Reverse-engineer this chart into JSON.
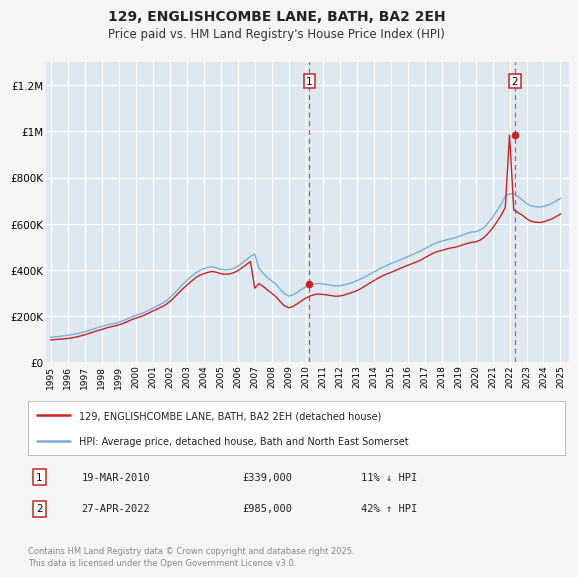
{
  "title": "129, ENGLISHCOMBE LANE, BATH, BA2 2EH",
  "subtitle": "Price paid vs. HM Land Registry's House Price Index (HPI)",
  "title_fontsize": 10,
  "subtitle_fontsize": 8.5,
  "xlim": [
    1994.7,
    2025.5
  ],
  "ylim": [
    0,
    1300000
  ],
  "yticks": [
    0,
    200000,
    400000,
    600000,
    800000,
    1000000,
    1200000
  ],
  "ytick_labels": [
    "£0",
    "£200K",
    "£400K",
    "£600K",
    "£800K",
    "£1M",
    "£1.2M"
  ],
  "xtick_years": [
    1995,
    1996,
    1997,
    1998,
    1999,
    2000,
    2001,
    2002,
    2003,
    2004,
    2005,
    2006,
    2007,
    2008,
    2009,
    2010,
    2011,
    2012,
    2013,
    2014,
    2015,
    2016,
    2017,
    2018,
    2019,
    2020,
    2021,
    2022,
    2023,
    2024,
    2025
  ],
  "background_color": "#f5f5f5",
  "plot_bg_color": "#dde8f0",
  "grid_color": "#ffffff",
  "hpi_color": "#7aaed6",
  "price_color": "#cc2222",
  "marker1_date_x": 2010.21,
  "marker1_price": 339000,
  "marker1_label": "1",
  "marker1_date_str": "19-MAR-2010",
  "marker1_price_str": "£339,000",
  "marker1_hpi_str": "11% ↓ HPI",
  "marker2_date_x": 2022.32,
  "marker2_price": 985000,
  "marker2_label": "2",
  "marker2_date_str": "27-APR-2022",
  "marker2_price_str": "£985,000",
  "marker2_hpi_str": "42% ↑ HPI",
  "legend_line1": "129, ENGLISHCOMBE LANE, BATH, BA2 2EH (detached house)",
  "legend_line2": "HPI: Average price, detached house, Bath and North East Somerset",
  "footer": "Contains HM Land Registry data © Crown copyright and database right 2025.\nThis data is licensed under the Open Government Licence v3.0.",
  "hpi_data_x": [
    1995.0,
    1995.25,
    1995.5,
    1995.75,
    1996.0,
    1996.25,
    1996.5,
    1996.75,
    1997.0,
    1997.25,
    1997.5,
    1997.75,
    1998.0,
    1998.25,
    1998.5,
    1998.75,
    1999.0,
    1999.25,
    1999.5,
    1999.75,
    2000.0,
    2000.25,
    2000.5,
    2000.75,
    2001.0,
    2001.25,
    2001.5,
    2001.75,
    2002.0,
    2002.25,
    2002.5,
    2002.75,
    2003.0,
    2003.25,
    2003.5,
    2003.75,
    2004.0,
    2004.25,
    2004.5,
    2004.75,
    2005.0,
    2005.25,
    2005.5,
    2005.75,
    2006.0,
    2006.25,
    2006.5,
    2006.75,
    2007.0,
    2007.25,
    2007.5,
    2007.75,
    2008.0,
    2008.25,
    2008.5,
    2008.75,
    2009.0,
    2009.25,
    2009.5,
    2009.75,
    2010.0,
    2010.25,
    2010.5,
    2010.75,
    2011.0,
    2011.25,
    2011.5,
    2011.75,
    2012.0,
    2012.25,
    2012.5,
    2012.75,
    2013.0,
    2013.25,
    2013.5,
    2013.75,
    2014.0,
    2014.25,
    2014.5,
    2014.75,
    2015.0,
    2015.25,
    2015.5,
    2015.75,
    2016.0,
    2016.25,
    2016.5,
    2016.75,
    2017.0,
    2017.25,
    2017.5,
    2017.75,
    2018.0,
    2018.25,
    2018.5,
    2018.75,
    2019.0,
    2019.25,
    2019.5,
    2019.75,
    2020.0,
    2020.25,
    2020.5,
    2020.75,
    2021.0,
    2021.25,
    2021.5,
    2021.75,
    2022.0,
    2022.25,
    2022.5,
    2022.75,
    2023.0,
    2023.25,
    2023.5,
    2023.75,
    2024.0,
    2024.25,
    2024.5,
    2024.75,
    2025.0
  ],
  "hpi_data_y": [
    107000,
    109000,
    111000,
    113000,
    116000,
    119000,
    122000,
    126000,
    131000,
    137000,
    143000,
    149000,
    154000,
    159000,
    164000,
    167000,
    172000,
    179000,
    187000,
    195000,
    202000,
    208000,
    215000,
    224000,
    233000,
    242000,
    252000,
    263000,
    278000,
    296000,
    316000,
    336000,
    354000,
    370000,
    385000,
    397000,
    405000,
    411000,
    413000,
    408000,
    402000,
    400000,
    401000,
    406000,
    415000,
    428000,
    443000,
    458000,
    468000,
    407000,
    385000,
    365000,
    352000,
    338000,
    315000,
    296000,
    286000,
    291000,
    302000,
    315000,
    325000,
    333000,
    338000,
    341000,
    338000,
    336000,
    333000,
    330000,
    330000,
    334000,
    339000,
    345000,
    352000,
    360000,
    370000,
    380000,
    390000,
    400000,
    410000,
    418000,
    426000,
    434000,
    441000,
    449000,
    457000,
    465000,
    473000,
    481000,
    491000,
    501000,
    511000,
    518000,
    524000,
    529000,
    534000,
    539000,
    544000,
    551000,
    558000,
    564000,
    565000,
    572000,
    583000,
    604000,
    628000,
    655000,
    683000,
    718000,
    730000,
    728000,
    718000,
    703000,
    688000,
    678000,
    674000,
    672000,
    675000,
    681000,
    688000,
    699000,
    710000
  ],
  "price_data_x": [
    1995.0,
    1995.25,
    1995.5,
    1995.75,
    1996.0,
    1996.25,
    1996.5,
    1996.75,
    1997.0,
    1997.25,
    1997.5,
    1997.75,
    1998.0,
    1998.25,
    1998.5,
    1998.75,
    1999.0,
    1999.25,
    1999.5,
    1999.75,
    2000.0,
    2000.25,
    2000.5,
    2000.75,
    2001.0,
    2001.25,
    2001.5,
    2001.75,
    2002.0,
    2002.25,
    2002.5,
    2002.75,
    2003.0,
    2003.25,
    2003.5,
    2003.75,
    2004.0,
    2004.25,
    2004.5,
    2004.75,
    2005.0,
    2005.25,
    2005.5,
    2005.75,
    2006.0,
    2006.25,
    2006.5,
    2006.75,
    2007.0,
    2007.25,
    2007.5,
    2007.75,
    2008.0,
    2008.25,
    2008.5,
    2008.75,
    2009.0,
    2009.25,
    2009.5,
    2009.75,
    2010.0,
    2010.25,
    2010.5,
    2010.75,
    2011.0,
    2011.25,
    2011.5,
    2011.75,
    2012.0,
    2012.25,
    2012.5,
    2012.75,
    2013.0,
    2013.25,
    2013.5,
    2013.75,
    2014.0,
    2014.25,
    2014.5,
    2014.75,
    2015.0,
    2015.25,
    2015.5,
    2015.75,
    2016.0,
    2016.25,
    2016.5,
    2016.75,
    2017.0,
    2017.25,
    2017.5,
    2017.75,
    2018.0,
    2018.25,
    2018.5,
    2018.75,
    2019.0,
    2019.25,
    2019.5,
    2019.75,
    2020.0,
    2020.25,
    2020.5,
    2020.75,
    2021.0,
    2021.25,
    2021.5,
    2021.75,
    2022.0,
    2022.25,
    2022.5,
    2022.75,
    2023.0,
    2023.25,
    2023.5,
    2023.75,
    2024.0,
    2024.25,
    2024.5,
    2024.75,
    2025.0
  ],
  "price_data_y": [
    95000,
    97000,
    99000,
    100000,
    102000,
    105000,
    108000,
    113000,
    118000,
    124000,
    130000,
    136000,
    141000,
    147000,
    152000,
    156000,
    161000,
    167000,
    175000,
    183000,
    190000,
    196000,
    203000,
    212000,
    221000,
    229000,
    238000,
    248000,
    262000,
    279000,
    298000,
    316000,
    333000,
    349000,
    364000,
    376000,
    383000,
    389000,
    393000,
    389000,
    383000,
    381000,
    382000,
    387000,
    396000,
    409000,
    422000,
    436000,
    320000,
    340000,
    328000,
    312000,
    298000,
    283000,
    262000,
    244000,
    235000,
    241000,
    252000,
    265000,
    277000,
    286000,
    292000,
    295000,
    293000,
    291000,
    288000,
    285000,
    286000,
    290000,
    296000,
    302000,
    309000,
    318000,
    330000,
    341000,
    352000,
    363000,
    373000,
    381000,
    388000,
    396000,
    404000,
    412000,
    419000,
    426000,
    434000,
    441000,
    452000,
    462000,
    472000,
    479000,
    484000,
    489000,
    494000,
    497000,
    502000,
    508000,
    514000,
    519000,
    521000,
    528000,
    540000,
    559000,
    581000,
    607000,
    636000,
    670000,
    985000,
    660000,
    648000,
    637000,
    622000,
    611000,
    607000,
    605000,
    608000,
    614000,
    621000,
    631000,
    642000
  ]
}
